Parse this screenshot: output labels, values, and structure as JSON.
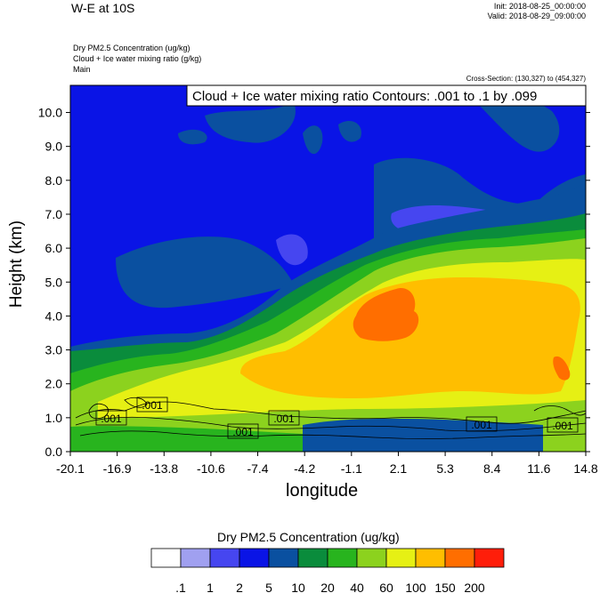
{
  "header": {
    "title": "W-E at 10S",
    "init": "Init: 2018-08-25_00:00:00",
    "valid": "Valid: 2018-08-29_09:00:00",
    "subtitle_1": "Dry PM2.5 Concentration   (ug/kg)",
    "subtitle_2": "Cloud + Ice water mixing ratio   (g/kg)",
    "subtitle_3": "Main",
    "cross_section": "Cross-Section: (130,327) to (454,327)"
  },
  "chart_data": {
    "type": "heatmap",
    "title": "W-E at 10S",
    "xlabel": "longitude",
    "ylabel": "Height (km)",
    "x_ticks": [
      "-20.1",
      "-16.9",
      "-13.8",
      "-10.6",
      "-7.4",
      "-4.2",
      "-1.1",
      "2.1",
      "5.3",
      "8.4",
      "11.6",
      "14.8"
    ],
    "y_ticks": [
      "0.0",
      "1.0",
      "2.0",
      "3.0",
      "4.0",
      "5.0",
      "6.0",
      "7.0",
      "8.0",
      "9.0",
      "10.0"
    ],
    "xlim": [
      -20.1,
      14.8
    ],
    "ylim": [
      0,
      10.8
    ],
    "contour_box": "Cloud + Ice water mixing ratio Contours: .001 to .1 by .099",
    "contour_labels": [
      ".001",
      ".001",
      ".001",
      ".001",
      ".001",
      ".001"
    ],
    "colorbar": {
      "title": "Dry PM2.5 Concentration  (ug/kg)",
      "labels": [
        ".1",
        "1",
        "2",
        "5",
        "10",
        "20",
        "40",
        "60",
        "100",
        "150",
        "200"
      ],
      "colors": [
        "#ffffff",
        "#a0a0f0",
        "#4646f0",
        "#0a14e6",
        "#0a50a0",
        "#0a8c3c",
        "#28b41e",
        "#8cd21e",
        "#e6f014",
        "#ffbe00",
        "#ff6e00",
        "#ff1e0a"
      ]
    }
  }
}
